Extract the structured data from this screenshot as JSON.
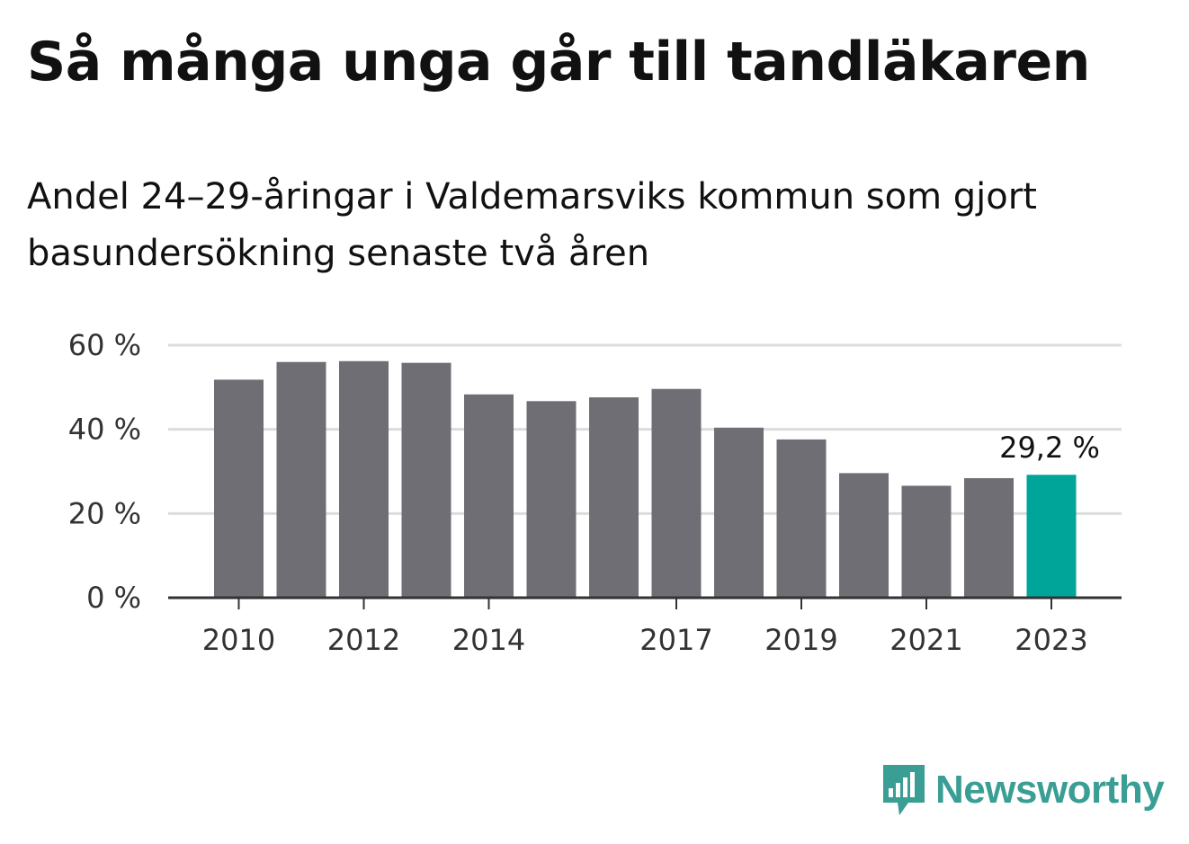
{
  "header": {
    "title": "Så många unga går till tandläkaren",
    "subtitle": "Andel 24–29-åringar i Valdemarsviks kommun som gjort basundersökning senaste två åren"
  },
  "brand": {
    "name": "Newsworthy",
    "logo_icon": "bar-chart-speech-bubble-icon",
    "color": "#3a9e94"
  },
  "colors": {
    "bar": "#6f6e74",
    "highlight": "#00a599",
    "grid": "#dcdcdc",
    "axis": "#333333"
  },
  "chart_data": {
    "type": "bar",
    "title": "Så många unga går till tandläkaren",
    "subtitle": "Andel 24–29-åringar i Valdemarsviks kommun som gjort basundersökning senaste två åren",
    "categories": [
      "2010",
      "2011",
      "2012",
      "2013",
      "2014",
      "2015",
      "2016",
      "2017",
      "2018",
      "2019",
      "2020",
      "2021",
      "2022",
      "2023"
    ],
    "x_tick_labels": [
      "2010",
      "2012",
      "2014",
      "2017",
      "2019",
      "2021",
      "2023"
    ],
    "values": [
      51.8,
      56.0,
      56.2,
      55.8,
      48.3,
      46.7,
      47.6,
      49.6,
      40.4,
      37.6,
      29.6,
      26.6,
      28.4,
      29.2
    ],
    "highlight_index": 13,
    "highlight_label": "29,2 %",
    "ylim": [
      0,
      60
    ],
    "y_ticks": [
      0,
      20,
      40,
      60
    ],
    "y_tick_labels": [
      "0 %",
      "20 %",
      "40 %",
      "60 %"
    ],
    "xlabel": "",
    "ylabel": "",
    "grid": true
  }
}
